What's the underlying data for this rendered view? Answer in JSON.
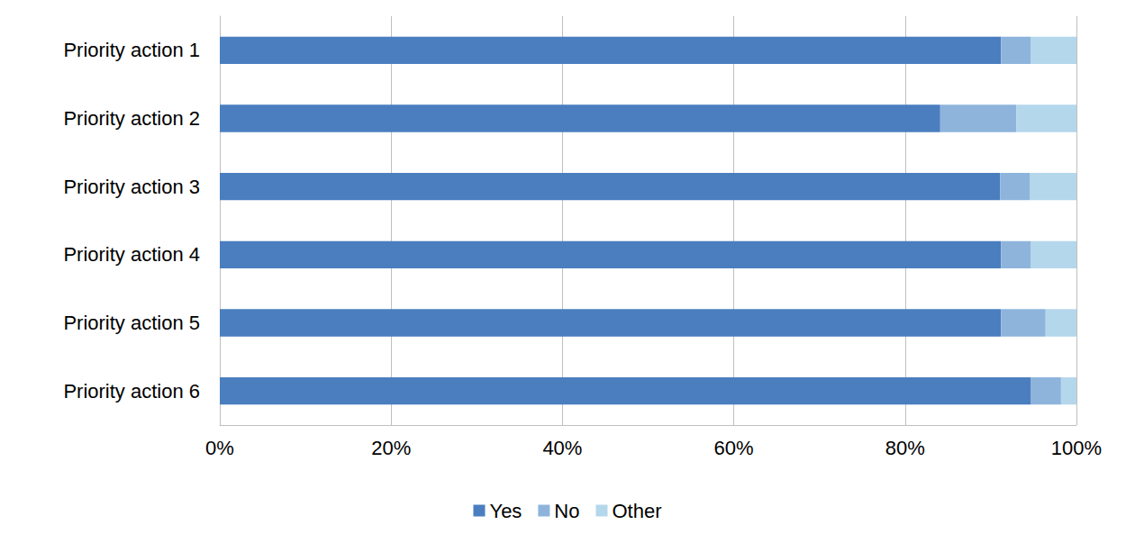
{
  "chart_data": {
    "type": "bar",
    "orientation": "horizontal",
    "stacked": true,
    "grid": true,
    "legend": "bottom",
    "categories": [
      "Priority action 1",
      "Priority action 2",
      "Priority action 3",
      "Priority action 4",
      "Priority action 5",
      "Priority action 6"
    ],
    "series": [
      {
        "name": "Yes",
        "color": "#4a7ebf",
        "values": [
          91.2,
          84.1,
          91.1,
          91.2,
          91.2,
          94.7
        ]
      },
      {
        "name": "No",
        "color": "#8eb4dc",
        "values": [
          3.5,
          8.9,
          3.5,
          3.5,
          5.2,
          3.5
        ]
      },
      {
        "name": "Other",
        "color": "#b4d7ec",
        "values": [
          5.3,
          7.0,
          5.4,
          5.3,
          3.6,
          1.8
        ]
      }
    ],
    "xlim": [
      0,
      100
    ],
    "xticks": [
      {
        "value": 0,
        "label": "0%"
      },
      {
        "value": 20,
        "label": "20%"
      },
      {
        "value": 40,
        "label": "40%"
      },
      {
        "value": 60,
        "label": "60%"
      },
      {
        "value": 80,
        "label": "80%"
      },
      {
        "value": 100,
        "label": "100%"
      }
    ]
  }
}
